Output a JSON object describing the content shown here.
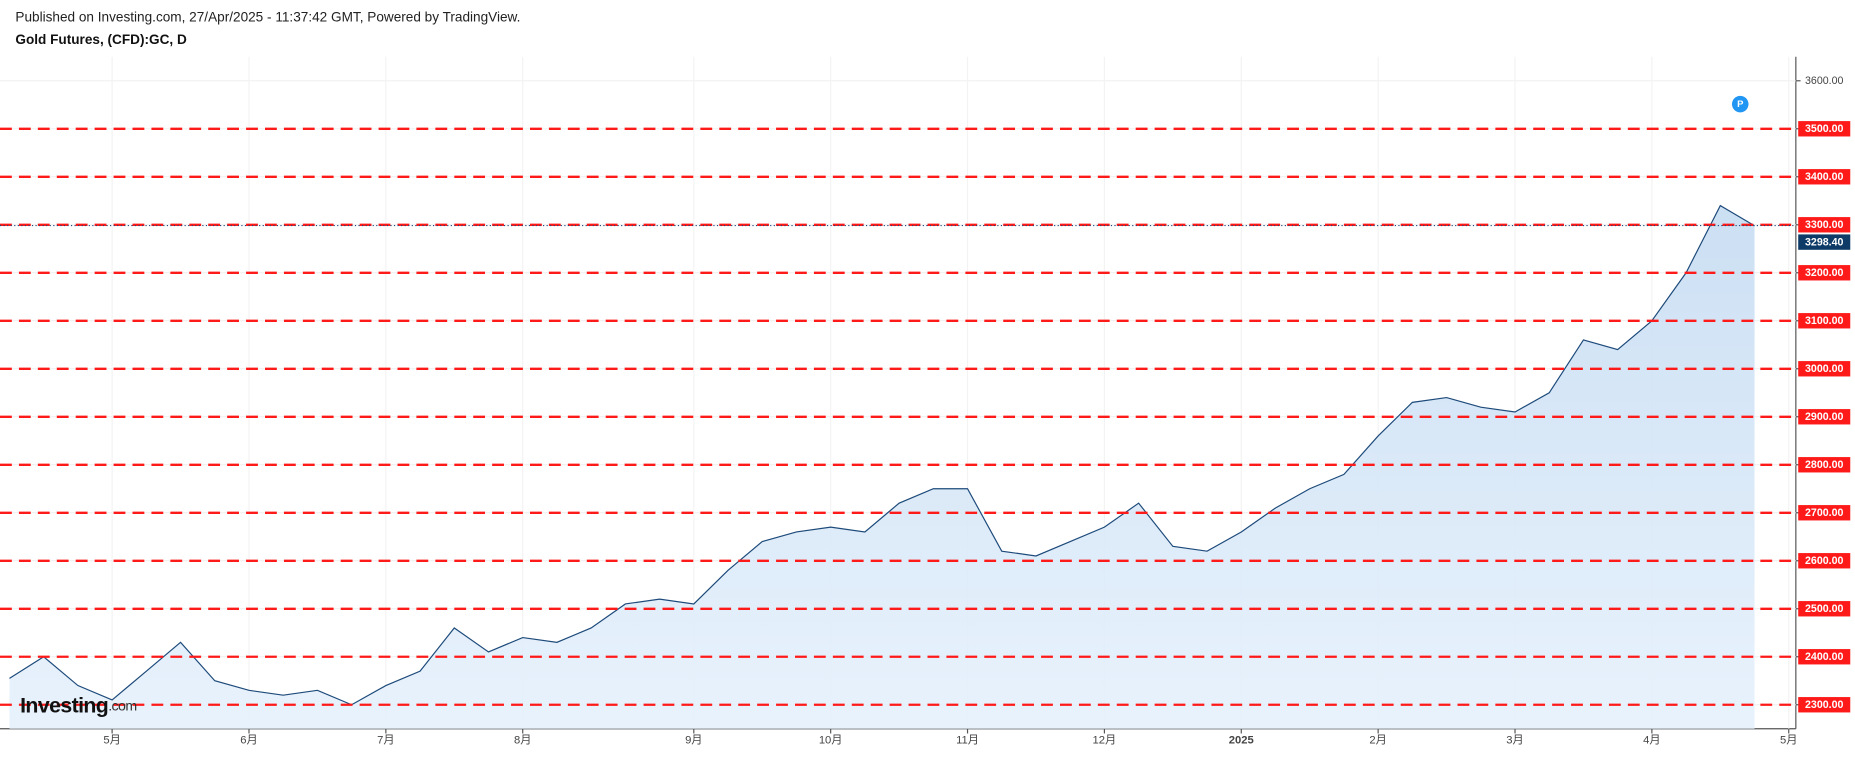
{
  "header": {
    "published": "Published on Investing.com, 27/Apr/2025 - 11:37:42 GMT, Powered by TradingView.",
    "symbol": "Gold Futures, (CFD):GC, D"
  },
  "logo": {
    "brand": "Investing",
    "suffix": ".com"
  },
  "marker": "P",
  "chart_data": {
    "type": "line",
    "categories": [
      null,
      null,
      null,
      "5月",
      null,
      null,
      null,
      "6月",
      null,
      null,
      null,
      "7月",
      null,
      null,
      null,
      "8月",
      null,
      null,
      null,
      null,
      "9月",
      null,
      null,
      null,
      "10月",
      null,
      null,
      null,
      "11月",
      null,
      null,
      null,
      "12月",
      null,
      null,
      null,
      "2025",
      null,
      null,
      null,
      "2月",
      null,
      null,
      null,
      "3月",
      null,
      null,
      null,
      "4月",
      null,
      null,
      null,
      "5月"
    ],
    "series": [
      {
        "name": "Gold Futures",
        "color": "#1d4a7a",
        "values": [
          2355,
          2400,
          2340,
          2310,
          2370,
          2430,
          2350,
          2330,
          2320,
          2330,
          2300,
          2340,
          2370,
          2460,
          2410,
          2440,
          2430,
          2460,
          2510,
          2520,
          2510,
          2580,
          2640,
          2660,
          2670,
          2660,
          2720,
          2750,
          2750,
          2620,
          2610,
          2640,
          2670,
          2720,
          2630,
          2620,
          2660,
          2710,
          2750,
          2780,
          2860,
          2930,
          2940,
          2920,
          2910,
          2950,
          3060,
          3040,
          3100,
          3200,
          3340,
          3298,
          null
        ]
      }
    ],
    "ylim": [
      2250,
      3650
    ],
    "yticks": [
      {
        "value": 2300,
        "label": "2300.00"
      },
      {
        "value": 2400,
        "label": "2400.00"
      },
      {
        "value": 2500,
        "label": "2500.00"
      },
      {
        "value": 2600,
        "label": "2600.00"
      },
      {
        "value": 2700,
        "label": "2700.00"
      },
      {
        "value": 2800,
        "label": "2800.00"
      },
      {
        "value": 2900,
        "label": "2900.00"
      },
      {
        "value": 3000,
        "label": "3000.00"
      },
      {
        "value": 3100,
        "label": "3100.00"
      },
      {
        "value": 3200,
        "label": "3200.00"
      },
      {
        "value": 3300,
        "label": "3300.00"
      },
      {
        "value": 3400,
        "label": "3400.00"
      },
      {
        "value": 3500,
        "label": "3500.00"
      },
      {
        "value": 3600,
        "label": "3600.00"
      }
    ],
    "levels": [
      2300,
      2400,
      2500,
      2600,
      2700,
      2800,
      2900,
      3000,
      3100,
      3200,
      3300,
      3400,
      3500
    ],
    "level_color": "#ff1a1a",
    "last_price": {
      "value": 3298.4,
      "label": "3298.40"
    },
    "grid": true
  }
}
